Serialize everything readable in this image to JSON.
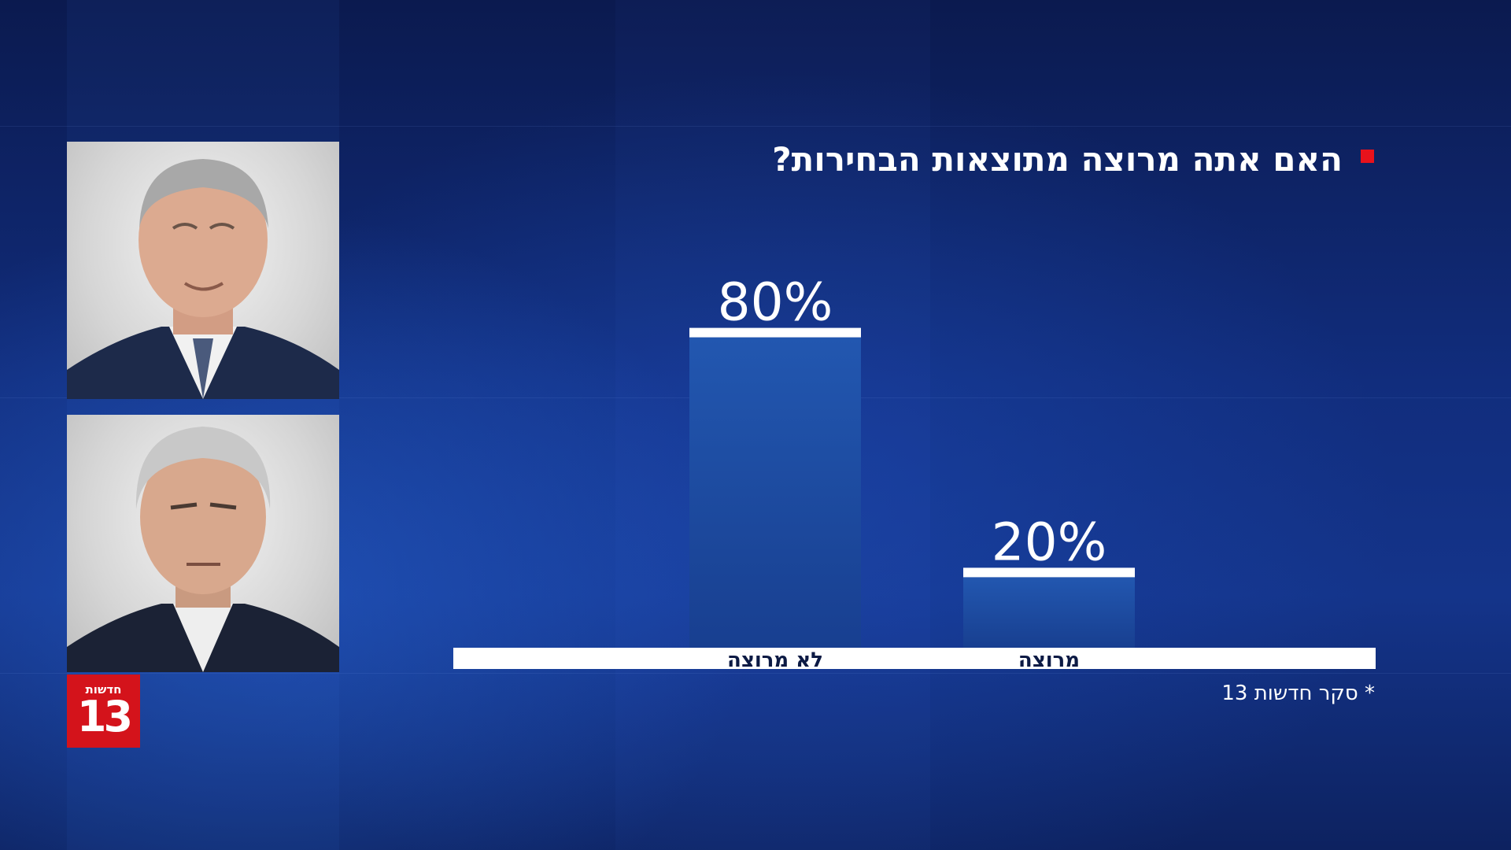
{
  "logo": {
    "brand": "חדשות",
    "number": "13",
    "color": "#d4131b"
  },
  "photos": [
    {
      "icon": "person-photo-icon"
    },
    {
      "icon": "person-photo-icon"
    }
  ],
  "chart_data": {
    "type": "bar",
    "title": "האם אתה מרוצה מתוצאות הבחירות?",
    "categories": [
      "לא מרוצה",
      "מרוצה"
    ],
    "values": [
      80,
      20
    ],
    "value_labels": [
      "80%",
      "20%"
    ],
    "ylim": [
      0,
      100
    ],
    "grid": false,
    "bar_color": "#1f52a8",
    "accent_color": "#e8121c"
  },
  "footnote": "* סקר חדשות 13"
}
